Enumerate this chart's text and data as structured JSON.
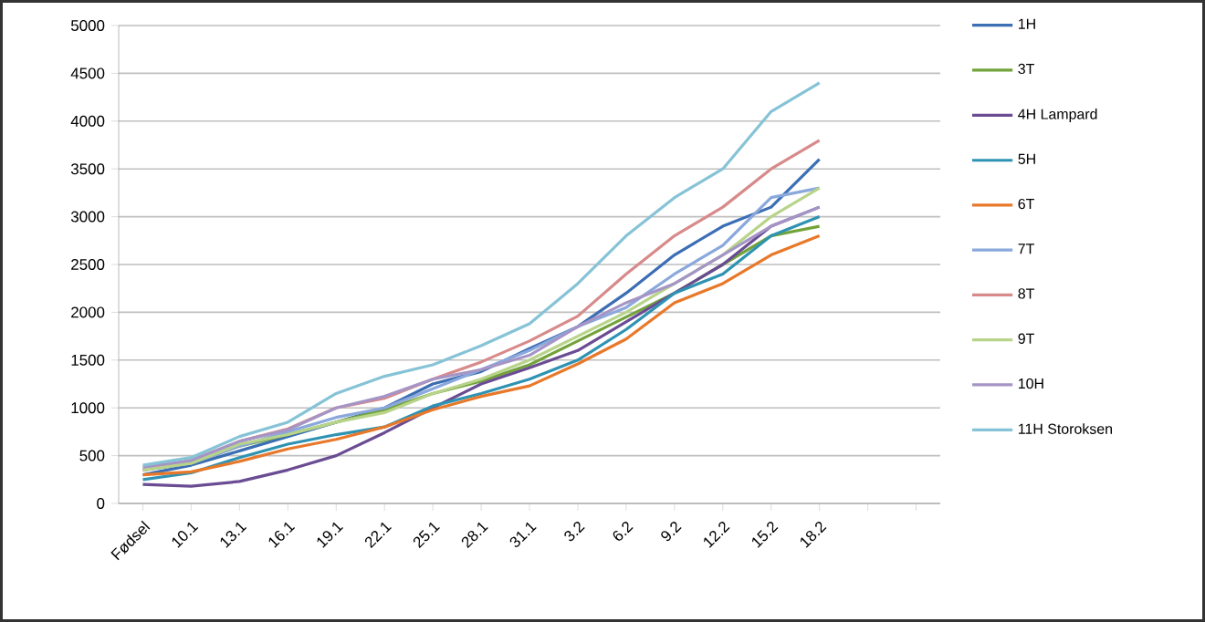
{
  "chart_data": {
    "type": "line",
    "categories": [
      "Fødsel",
      "10.1",
      "13.1",
      "16.1",
      "19.1",
      "22.1",
      "25.1",
      "28.1",
      "31.1",
      "3.2",
      "6.2",
      "9.2",
      "12.2",
      "15.2",
      "18.2",
      null,
      null
    ],
    "series": [
      {
        "name": "1H",
        "color": "#3c6eb4",
        "values": [
          300,
          400,
          550,
          700,
          850,
          1000,
          1250,
          1380,
          1620,
          1850,
          2200,
          2600,
          2900,
          3100,
          3600,
          null,
          null
        ]
      },
      {
        "name": "3T",
        "color": "#72a33a",
        "values": [
          350,
          420,
          600,
          720,
          850,
          980,
          1150,
          1280,
          1450,
          1700,
          1950,
          2200,
          2500,
          2800,
          2900,
          null,
          null
        ]
      },
      {
        "name": "4H Lampard",
        "color": "#6a4c93",
        "values": [
          200,
          180,
          230,
          350,
          500,
          740,
          1000,
          1250,
          1420,
          1600,
          1900,
          2200,
          2500,
          2900,
          3100,
          null,
          null
        ]
      },
      {
        "name": "5H",
        "color": "#2e93b2",
        "values": [
          250,
          320,
          480,
          620,
          720,
          800,
          1020,
          1150,
          1300,
          1500,
          1820,
          2200,
          2400,
          2800,
          3000,
          null,
          null
        ]
      },
      {
        "name": "6T",
        "color": "#e8782a",
        "values": [
          300,
          330,
          440,
          570,
          670,
          800,
          980,
          1120,
          1230,
          1460,
          1720,
          2100,
          2300,
          2600,
          2800,
          null,
          null
        ]
      },
      {
        "name": "7T",
        "color": "#8aa8dc",
        "values": [
          350,
          420,
          600,
          750,
          900,
          1000,
          1200,
          1400,
          1600,
          1850,
          2050,
          2400,
          2700,
          3200,
          3300,
          null,
          null
        ]
      },
      {
        "name": "8T",
        "color": "#d88a8a",
        "values": [
          350,
          450,
          650,
          780,
          1000,
          1100,
          1300,
          1480,
          1700,
          1960,
          2400,
          2800,
          3100,
          3500,
          3800,
          null,
          null
        ]
      },
      {
        "name": "9T",
        "color": "#b8d48a",
        "values": [
          350,
          420,
          620,
          720,
          850,
          950,
          1150,
          1300,
          1500,
          1750,
          2000,
          2300,
          2600,
          3000,
          3300,
          null,
          null
        ]
      },
      {
        "name": "10H",
        "color": "#a595c6",
        "values": [
          380,
          450,
          650,
          770,
          1000,
          1120,
          1300,
          1400,
          1550,
          1850,
          2100,
          2300,
          2600,
          2900,
          3100,
          null,
          null
        ]
      },
      {
        "name": "11H Storoksen",
        "color": "#86c3d6",
        "values": [
          400,
          480,
          700,
          850,
          1150,
          1330,
          1450,
          1650,
          1880,
          2300,
          2800,
          3200,
          3500,
          4100,
          4400,
          null,
          null
        ]
      }
    ],
    "ylim": [
      0,
      5000
    ],
    "yticks": [
      0,
      500,
      1000,
      1500,
      2000,
      2500,
      3000,
      3500,
      4000,
      4500,
      5000
    ],
    "grid": "y",
    "legend": "right",
    "marker": "none",
    "line_style": "solid"
  }
}
